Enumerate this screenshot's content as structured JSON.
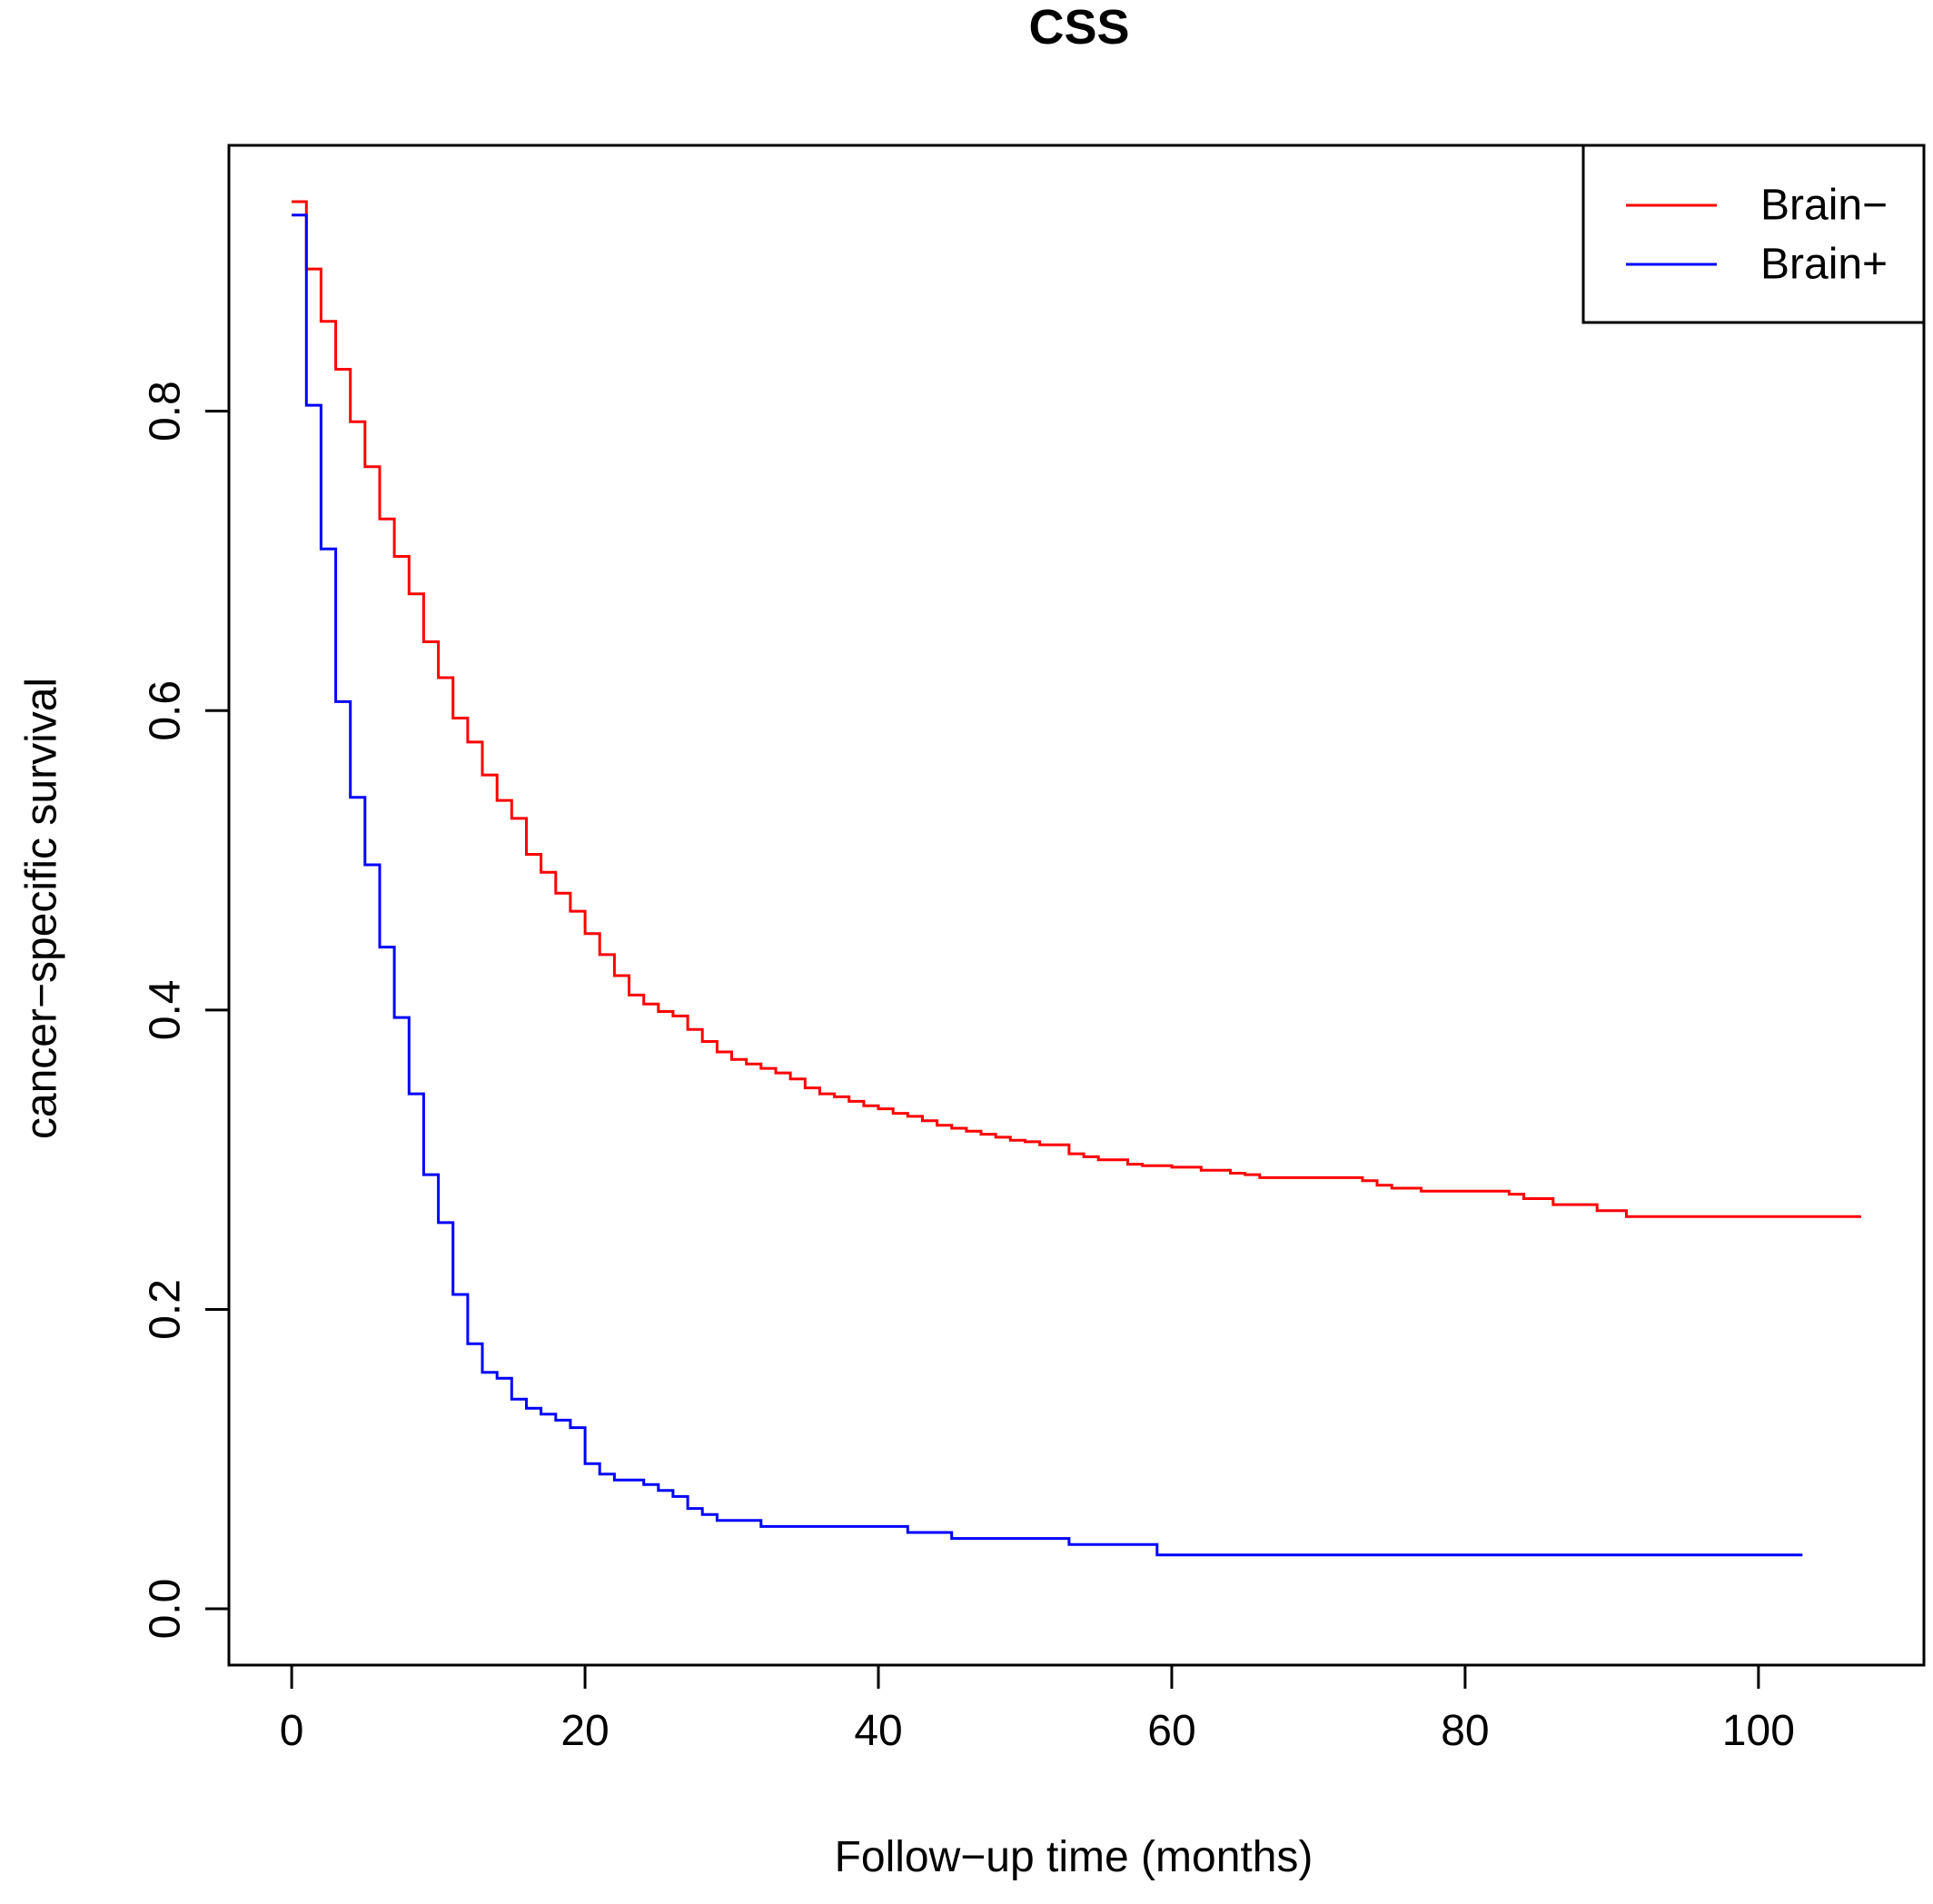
{
  "chart_data": {
    "type": "line",
    "title": "CSS",
    "xlabel": "Follow−up time (months)",
    "ylabel": "cancer−specific survival",
    "xlim": [
      -4.28,
      111.28
    ],
    "ylim": [
      -0.0376,
      0.9776
    ],
    "x_ticks": [
      0,
      20,
      40,
      60,
      80,
      100
    ],
    "x_tick_labels": [
      "0",
      "20",
      "40",
      "60",
      "80",
      "100"
    ],
    "y_ticks": [
      0.0,
      0.2,
      0.4,
      0.6,
      0.8
    ],
    "y_tick_labels": [
      "0.0",
      "0.2",
      "0.4",
      "0.6",
      "0.8"
    ],
    "grid": false,
    "legend": {
      "position": "top-right"
    },
    "colors": {
      "brain_minus": "#ff0000",
      "brain_plus": "#0000ff",
      "axes": "#000000"
    },
    "series": [
      {
        "name": "Brain−",
        "color": "#ff0000",
        "step": true,
        "points": [
          [
            0,
            0.94
          ],
          [
            1,
            0.895
          ],
          [
            2,
            0.86
          ],
          [
            3,
            0.828
          ],
          [
            4,
            0.793
          ],
          [
            5,
            0.763
          ],
          [
            6,
            0.728
          ],
          [
            7,
            0.703
          ],
          [
            8,
            0.678
          ],
          [
            9,
            0.646
          ],
          [
            10,
            0.622
          ],
          [
            11,
            0.595
          ],
          [
            12,
            0.579
          ],
          [
            13,
            0.557
          ],
          [
            14,
            0.54
          ],
          [
            15,
            0.528
          ],
          [
            16,
            0.504
          ],
          [
            17,
            0.492
          ],
          [
            18,
            0.478
          ],
          [
            19,
            0.466
          ],
          [
            20,
            0.451
          ],
          [
            21,
            0.437
          ],
          [
            22,
            0.423
          ],
          [
            23,
            0.41
          ],
          [
            24,
            0.404
          ],
          [
            25,
            0.399
          ],
          [
            26,
            0.396
          ],
          [
            27,
            0.387
          ],
          [
            28,
            0.379
          ],
          [
            29,
            0.372
          ],
          [
            30,
            0.367
          ],
          [
            31,
            0.364
          ],
          [
            32,
            0.361
          ],
          [
            33,
            0.358
          ],
          [
            34,
            0.354
          ],
          [
            35,
            0.348
          ],
          [
            36,
            0.344
          ],
          [
            37,
            0.342
          ],
          [
            38,
            0.339
          ],
          [
            39,
            0.336
          ],
          [
            40,
            0.334
          ],
          [
            41,
            0.331
          ],
          [
            42,
            0.329
          ],
          [
            43,
            0.326
          ],
          [
            44,
            0.323
          ],
          [
            45,
            0.321
          ],
          [
            46,
            0.319
          ],
          [
            47,
            0.317
          ],
          [
            48,
            0.315
          ],
          [
            49,
            0.313
          ],
          [
            50,
            0.312
          ],
          [
            51,
            0.31
          ],
          [
            53,
            0.304
          ],
          [
            54,
            0.302
          ],
          [
            55,
            0.3
          ],
          [
            57,
            0.297
          ],
          [
            58,
            0.296
          ],
          [
            60,
            0.295
          ],
          [
            62,
            0.293
          ],
          [
            64,
            0.291
          ],
          [
            65,
            0.29
          ],
          [
            66,
            0.288
          ],
          [
            73,
            0.286
          ],
          [
            74,
            0.283
          ],
          [
            75,
            0.281
          ],
          [
            77,
            0.279
          ],
          [
            83,
            0.277
          ],
          [
            84,
            0.274
          ],
          [
            86,
            0.27
          ],
          [
            89,
            0.266
          ],
          [
            91,
            0.262
          ],
          [
            107,
            0.262
          ]
        ]
      },
      {
        "name": "Brain+",
        "color": "#0000ff",
        "step": true,
        "points": [
          [
            0,
            0.931
          ],
          [
            1,
            0.804
          ],
          [
            2,
            0.708
          ],
          [
            3,
            0.606
          ],
          [
            4,
            0.542
          ],
          [
            5,
            0.497
          ],
          [
            6,
            0.442
          ],
          [
            7,
            0.395
          ],
          [
            8,
            0.344
          ],
          [
            9,
            0.29
          ],
          [
            10,
            0.258
          ],
          [
            11,
            0.21
          ],
          [
            12,
            0.177
          ],
          [
            13,
            0.158
          ],
          [
            14,
            0.154
          ],
          [
            15,
            0.14
          ],
          [
            16,
            0.134
          ],
          [
            17,
            0.13
          ],
          [
            18,
            0.126
          ],
          [
            19,
            0.121
          ],
          [
            20,
            0.097
          ],
          [
            21,
            0.09
          ],
          [
            22,
            0.086
          ],
          [
            24,
            0.083
          ],
          [
            25,
            0.079
          ],
          [
            26,
            0.075
          ],
          [
            27,
            0.067
          ],
          [
            28,
            0.063
          ],
          [
            29,
            0.059
          ],
          [
            32,
            0.055
          ],
          [
            42,
            0.051
          ],
          [
            45,
            0.047
          ],
          [
            53,
            0.043
          ],
          [
            59,
            0.036
          ],
          [
            103,
            0.036
          ]
        ]
      }
    ]
  }
}
